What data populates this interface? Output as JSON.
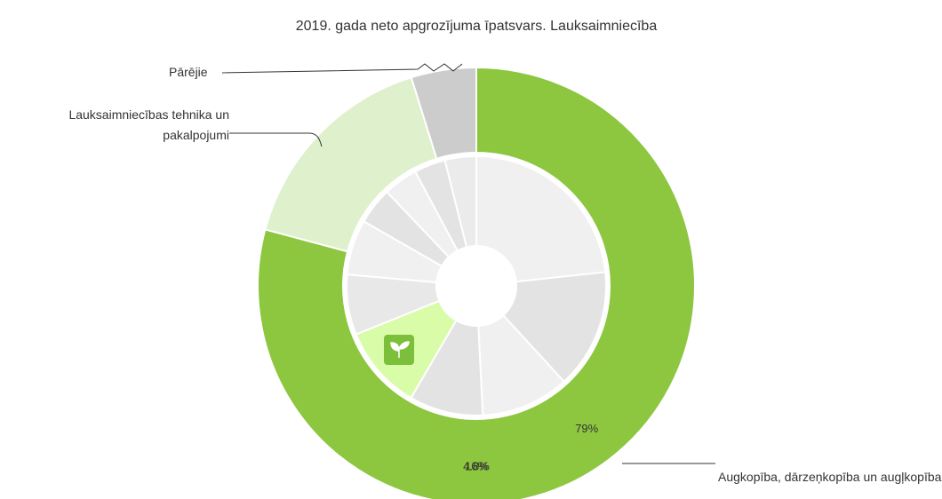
{
  "chart_data": {
    "type": "pie",
    "title": "2019. gada neto apgrozījuma īpatsvars. Lauksaimniecība",
    "categories": [
      "Augkopība, dārzeņkopība un augļkopība",
      "Lauksaimniecības tehnika un pakalpojumi",
      "Pārējie"
    ],
    "values": [
      79,
      16,
      4.8
    ],
    "value_labels": [
      "79%",
      "16%",
      "4.8%"
    ],
    "colors": [
      "#8dc63f",
      "#dff0cc",
      "#cccccc"
    ],
    "inner": {
      "values": [
        23.3,
        14.9,
        11,
        9.2,
        10.5,
        7.5,
        6.9,
        4.6,
        4.3,
        3.9,
        3.9
      ],
      "colors": [
        "#f0f0f0",
        "#e3e3e3",
        "#f0f0f0",
        "#e3e3e3",
        "#d9fca8",
        "#e8e8e8",
        "#f0f0f0",
        "#e3e3e3",
        "#f0f0f0",
        "#e3e3e3",
        "#ebebeb"
      ]
    }
  }
}
